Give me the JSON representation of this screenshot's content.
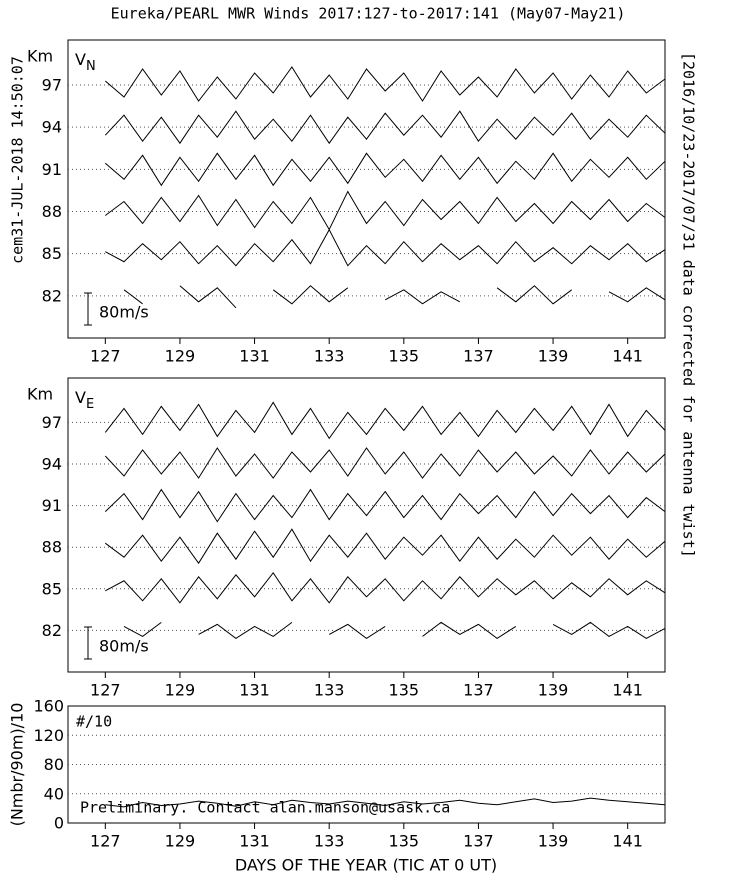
{
  "title": "Eureka/PEARL MWR Winds 2017:127-to-2017:141 (May07-May21)",
  "created": "cem31-JUL-2018 14:50:07",
  "side_note": "[2016/10/23-2017/07/31 data corrected for antenna twist]",
  "xlabel": "DAYS OF THE YEAR (TIC AT 0 UT)",
  "chart_data": [
    {
      "type": "line",
      "label": "V",
      "label_sub": "N",
      "ylabel": "Km",
      "scale_bar": {
        "value": 80,
        "label": "80m/s"
      },
      "xlim": [
        126,
        142
      ],
      "xticks": [
        127,
        129,
        131,
        133,
        135,
        137,
        139,
        141
      ],
      "ylim": [
        79,
        100.2
      ],
      "yticks": [
        97,
        94,
        91,
        88,
        85,
        82
      ],
      "grid": true,
      "color": "#000000",
      "x": [
        127,
        127.5,
        128,
        128.5,
        129,
        129.5,
        130,
        130.5,
        131,
        131.5,
        132,
        132.5,
        133,
        133.5,
        134,
        134.5,
        135,
        135.5,
        136,
        136.5,
        137,
        137.5,
        138,
        138.5,
        139,
        139.5,
        140,
        140.5,
        141,
        141.5,
        142
      ],
      "series": [
        {
          "values": [
            10,
            -30,
            40,
            -25,
            35,
            -40,
            20,
            -35,
            30,
            -20,
            45,
            -30,
            25,
            -35,
            40,
            -15,
            30,
            -40,
            35,
            -25,
            20,
            -30,
            40,
            -20,
            30,
            -35,
            25,
            -30,
            35,
            -20,
            15
          ]
        },
        {
          "values": [
            -20,
            30,
            -35,
            25,
            -40,
            30,
            -25,
            40,
            -30,
            20,
            -35,
            30,
            -40,
            25,
            -30,
            35,
            -20,
            30,
            -25,
            40,
            -35,
            20,
            -30,
            25,
            -20,
            35,
            -30,
            20,
            -25,
            30,
            -15
          ]
        },
        {
          "values": [
            15,
            -25,
            35,
            -40,
            30,
            -30,
            40,
            -25,
            35,
            -40,
            25,
            -30,
            30,
            -35,
            40,
            -20,
            25,
            -30,
            35,
            -25,
            30,
            -35,
            20,
            -25,
            40,
            -30,
            25,
            -20,
            30,
            -25,
            20
          ]
        },
        {
          "values": [
            -10,
            25,
            -30,
            35,
            -25,
            40,
            -35,
            30,
            -40,
            25,
            -30,
            35,
            -45,
            50,
            -30,
            25,
            -35,
            30,
            -20,
            25,
            -30,
            35,
            -25,
            20,
            -30,
            25,
            -20,
            30,
            -25,
            20,
            -15
          ]
        },
        {
          "values": [
            5,
            -20,
            25,
            -15,
            30,
            -25,
            20,
            -30,
            25,
            -20,
            35,
            -25,
            60,
            -30,
            20,
            -25,
            30,
            -20,
            25,
            -15,
            20,
            -25,
            30,
            -20,
            15,
            -25,
            20,
            -15,
            25,
            -20,
            10
          ]
        },
        {
          "values": [
            null,
            15,
            -20,
            null,
            25,
            -15,
            20,
            -30,
            null,
            15,
            -20,
            25,
            -15,
            20,
            null,
            -10,
            15,
            -20,
            10,
            -15,
            null,
            20,
            -15,
            25,
            -20,
            15,
            null,
            10,
            -15,
            20,
            -10
          ]
        }
      ]
    },
    {
      "type": "line",
      "label": "V",
      "label_sub": "E",
      "ylabel": "Km",
      "scale_bar": {
        "value": 80,
        "label": "80m/s"
      },
      "xlim": [
        126,
        142
      ],
      "xticks": [
        127,
        129,
        131,
        133,
        135,
        137,
        139,
        141
      ],
      "ylim": [
        79,
        100.2
      ],
      "yticks": [
        97,
        94,
        91,
        88,
        85,
        82
      ],
      "grid": true,
      "color": "#000000",
      "x": [
        127,
        127.5,
        128,
        128.5,
        129,
        129.5,
        130,
        130.5,
        131,
        131.5,
        132,
        132.5,
        133,
        133.5,
        134,
        134.5,
        135,
        135.5,
        136,
        136.5,
        137,
        137.5,
        138,
        138.5,
        139,
        139.5,
        140,
        140.5,
        141,
        141.5,
        142
      ],
      "series": [
        {
          "values": [
            -25,
            35,
            -30,
            40,
            -20,
            45,
            -35,
            30,
            -25,
            50,
            -30,
            35,
            -40,
            25,
            -30,
            35,
            -20,
            40,
            -30,
            25,
            -35,
            30,
            -25,
            35,
            -20,
            40,
            -30,
            45,
            -35,
            30,
            -20
          ]
        },
        {
          "values": [
            20,
            -30,
            35,
            -25,
            30,
            -35,
            40,
            -30,
            25,
            -35,
            30,
            -20,
            35,
            -30,
            40,
            -25,
            30,
            -35,
            25,
            -30,
            35,
            -20,
            30,
            -25,
            20,
            -30,
            35,
            -25,
            30,
            -20,
            25
          ]
        },
        {
          "values": [
            -15,
            30,
            -35,
            40,
            -30,
            35,
            -40,
            30,
            -35,
            25,
            -30,
            40,
            -35,
            30,
            -25,
            35,
            -30,
            25,
            -35,
            30,
            -20,
            25,
            -30,
            35,
            -25,
            30,
            -20,
            25,
            -30,
            20,
            -15
          ]
        },
        {
          "values": [
            10,
            -25,
            30,
            -35,
            25,
            -40,
            35,
            -30,
            40,
            -25,
            45,
            -35,
            30,
            -25,
            35,
            -30,
            25,
            -20,
            30,
            -35,
            25,
            -30,
            20,
            -25,
            30,
            -20,
            25,
            -30,
            20,
            -25,
            15
          ]
        },
        {
          "values": [
            -5,
            20,
            -30,
            25,
            -35,
            30,
            -25,
            35,
            -20,
            40,
            -30,
            25,
            -35,
            30,
            -20,
            25,
            -30,
            20,
            -25,
            30,
            -20,
            25,
            -15,
            20,
            -25,
            15,
            -20,
            25,
            -15,
            20,
            -10
          ]
        },
        {
          "values": [
            null,
            10,
            -15,
            20,
            null,
            -10,
            15,
            -20,
            10,
            -15,
            20,
            null,
            -10,
            15,
            -20,
            10,
            null,
            -15,
            20,
            -10,
            15,
            -20,
            10,
            null,
            15,
            -10,
            20,
            -15,
            10,
            -20,
            5
          ]
        }
      ]
    },
    {
      "type": "count",
      "label": "#/10",
      "ylabel": "(Nmbr/90m)/10",
      "annotation": "Preliminary. Contact alan.manson@usask.ca",
      "xlim": [
        126,
        142
      ],
      "xticks": [
        127,
        129,
        131,
        133,
        135,
        137,
        139,
        141
      ],
      "ylim": [
        0,
        160
      ],
      "yticks": [
        160,
        120,
        80,
        40,
        0
      ],
      "grid": true,
      "color": "#000000",
      "x": [
        127,
        127.5,
        128,
        128.5,
        129,
        129.5,
        130,
        130.5,
        131,
        131.5,
        132,
        132.5,
        133,
        133.5,
        134,
        134.5,
        135,
        135.5,
        136,
        136.5,
        137,
        137.5,
        138,
        138.5,
        139,
        139.5,
        140,
        140.5,
        141,
        141.5,
        142
      ],
      "values": [
        25,
        22,
        28,
        24,
        26,
        30,
        27,
        23,
        29,
        25,
        31,
        28,
        26,
        30,
        27,
        24,
        29,
        26,
        28,
        31,
        27,
        25,
        29,
        33,
        28,
        30,
        34,
        31,
        29,
        27,
        25
      ]
    }
  ]
}
